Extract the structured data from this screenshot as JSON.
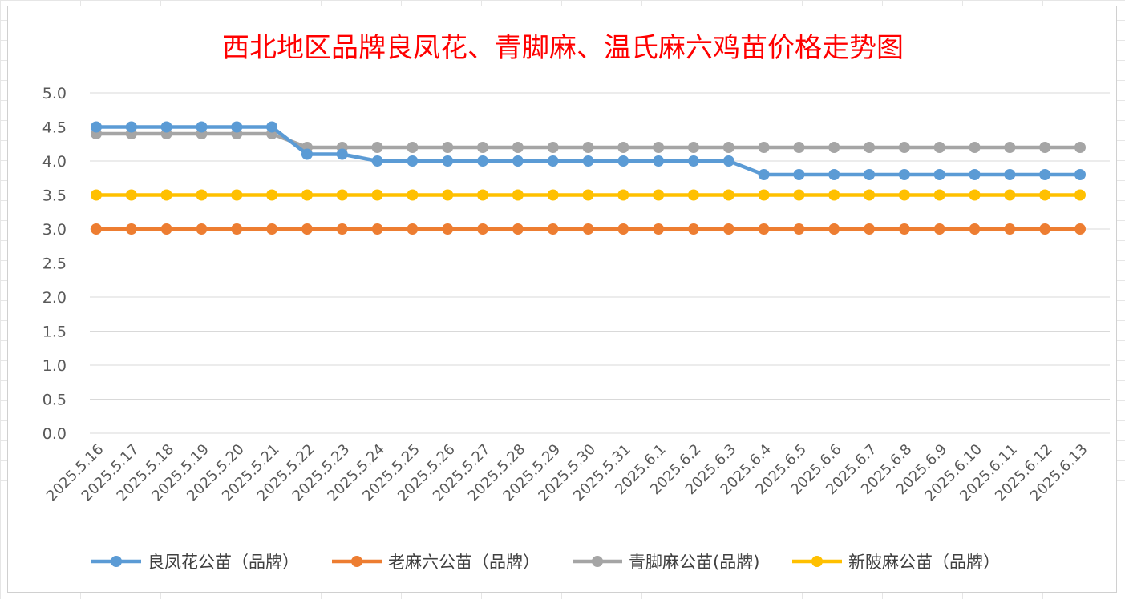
{
  "chart_data": {
    "type": "line",
    "title": "西北地区品牌良凤花、青脚麻、温氏麻六鸡苗价格走势图",
    "xlabel": "",
    "ylabel": "",
    "ylim": [
      0,
      5
    ],
    "yticks": [
      "0.0",
      "0.5",
      "1.0",
      "1.5",
      "2.0",
      "2.5",
      "3.0",
      "3.5",
      "4.0",
      "4.5",
      "5.0"
    ],
    "grid": true,
    "legend_position": "bottom",
    "categories": [
      "2025.5.16",
      "2025.5.17",
      "2025.5.18",
      "2025.5.19",
      "2025.5.20",
      "2025.5.21",
      "2025.5.22",
      "2025.5.23",
      "2025.5.24",
      "2025.5.25",
      "2025.5.26",
      "2025.5.27",
      "2025.5.28",
      "2025.5.29",
      "2025.5.30",
      "2025.5.31",
      "2025.6.1",
      "2025.6.2",
      "2025.6.3",
      "2025.6.4",
      "2025.6.5",
      "2025.6.6",
      "2025.6.7",
      "2025.6.8",
      "2025.6.9",
      "2025.6.10",
      "2025.6.11",
      "2025.6.12",
      "2025.6.13"
    ],
    "series": [
      {
        "name": "良凤花公苗（品牌）",
        "color": "#5b9bd5",
        "values": [
          4.5,
          4.5,
          4.5,
          4.5,
          4.5,
          4.5,
          4.1,
          4.1,
          4.0,
          4.0,
          4.0,
          4.0,
          4.0,
          4.0,
          4.0,
          4.0,
          4.0,
          4.0,
          4.0,
          3.8,
          3.8,
          3.8,
          3.8,
          3.8,
          3.8,
          3.8,
          3.8,
          3.8,
          3.8
        ]
      },
      {
        "name": "老麻六公苗（品牌）",
        "color": "#ed7d31",
        "values": [
          3.0,
          3.0,
          3.0,
          3.0,
          3.0,
          3.0,
          3.0,
          3.0,
          3.0,
          3.0,
          3.0,
          3.0,
          3.0,
          3.0,
          3.0,
          3.0,
          3.0,
          3.0,
          3.0,
          3.0,
          3.0,
          3.0,
          3.0,
          3.0,
          3.0,
          3.0,
          3.0,
          3.0,
          3.0
        ]
      },
      {
        "name": "青脚麻公苗(品牌)",
        "color": "#a5a5a5",
        "values": [
          4.4,
          4.4,
          4.4,
          4.4,
          4.4,
          4.4,
          4.2,
          4.2,
          4.2,
          4.2,
          4.2,
          4.2,
          4.2,
          4.2,
          4.2,
          4.2,
          4.2,
          4.2,
          4.2,
          4.2,
          4.2,
          4.2,
          4.2,
          4.2,
          4.2,
          4.2,
          4.2,
          4.2,
          4.2
        ]
      },
      {
        "name": "新陂麻公苗（品牌）",
        "color": "#ffc000",
        "values": [
          3.5,
          3.5,
          3.5,
          3.5,
          3.5,
          3.5,
          3.5,
          3.5,
          3.5,
          3.5,
          3.5,
          3.5,
          3.5,
          3.5,
          3.5,
          3.5,
          3.5,
          3.5,
          3.5,
          3.5,
          3.5,
          3.5,
          3.5,
          3.5,
          3.5,
          3.5,
          3.5,
          3.5,
          3.5
        ]
      }
    ]
  }
}
